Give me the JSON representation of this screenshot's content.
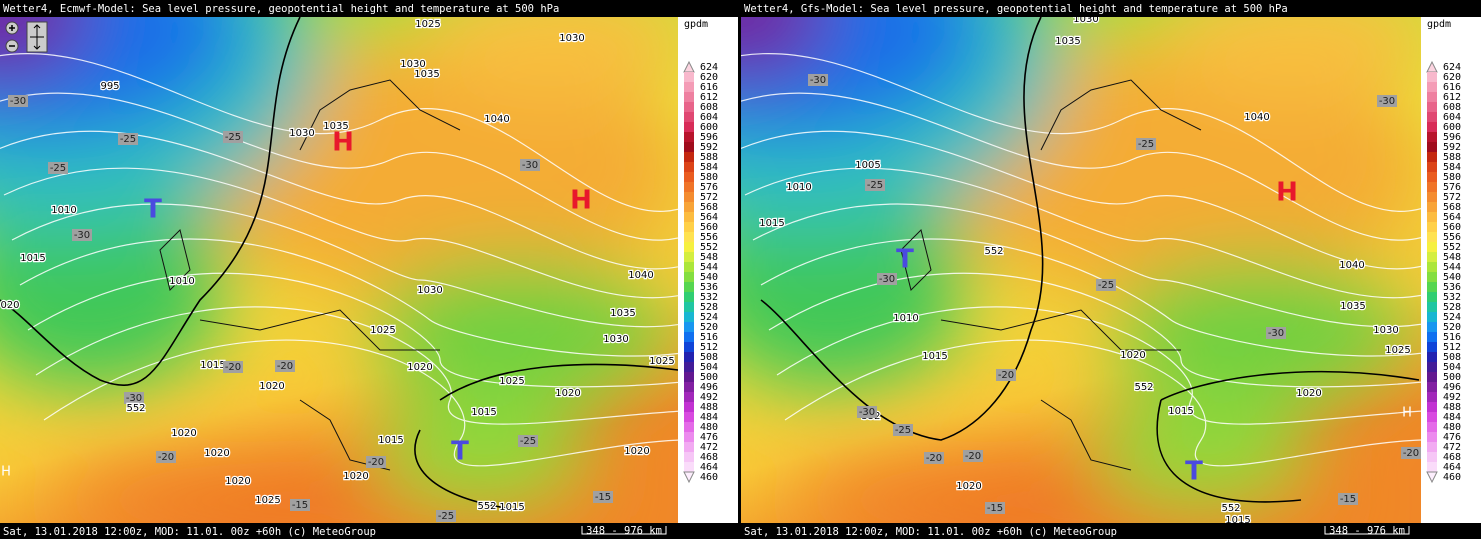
{
  "legend": {
    "unit": "gpdm",
    "levels": [
      624,
      620,
      616,
      612,
      608,
      604,
      600,
      596,
      592,
      588,
      584,
      580,
      576,
      572,
      568,
      564,
      560,
      556,
      552,
      548,
      544,
      540,
      536,
      532,
      528,
      524,
      520,
      516,
      512,
      508,
      504,
      500,
      496,
      492,
      488,
      484,
      480,
      476,
      472,
      468,
      464,
      460
    ],
    "colors": [
      "#fcd4e0",
      "#f8b8cc",
      "#f49cb6",
      "#ee80a0",
      "#e8648a",
      "#e04872",
      "#d82c58",
      "#b8142c",
      "#a00c1c",
      "#c42810",
      "#dc4418",
      "#ea5c20",
      "#f07428",
      "#f48c30",
      "#f8a438",
      "#fcbc40",
      "#ffd048",
      "#ffe250",
      "#f6f040",
      "#d4ee40",
      "#acE63a",
      "#84de40",
      "#56d650",
      "#30ce72",
      "#20c6a2",
      "#18b6d2",
      "#1896f0",
      "#1070f0",
      "#1044d8",
      "#2222b0",
      "#421c98",
      "#621890",
      "#8220a2",
      "#a228ba",
      "#c232d2",
      "#d84ae0",
      "#e46ae8",
      "#ec8aee",
      "#f2aaf2",
      "#f6c6f6",
      "#fadcfa",
      "#fdeefd"
    ]
  },
  "panels": [
    {
      "title": "Wetter4, Ecmwf-Model: Sea level pressure, geopotential height and temperature at 500 hPa",
      "footer": "Sat, 13.01.2018 12:00z, MOD: 11.01. 00z +60h (c) MeteoGroup",
      "scale": "348 - 976 km",
      "labels": [
        "H",
        "H",
        "T",
        "T",
        "H",
        "1025",
        "1030",
        "995",
        "1030",
        "1035",
        "1030",
        "1035",
        "1040",
        "1010",
        "1015",
        "1010",
        "020",
        "1030",
        "1040",
        "1035",
        "1030",
        "1025",
        "1025",
        "1015",
        "1020",
        "1020",
        "1025",
        "1020",
        "1015",
        "1015",
        "1020",
        "1020",
        "1020",
        "1020",
        "1025",
        "552",
        "1015",
        "1020",
        "-30",
        "-25",
        "-25",
        "-25",
        "-30",
        "-30",
        "-20",
        "-20",
        "-30",
        "552",
        "-20",
        "-20",
        "-25",
        "-15",
        "-25",
        "-15"
      ]
    },
    {
      "title": "Wetter4, Gfs-Model: Sea level pressure, geopotential height and temperature at 500 hPa",
      "footer": "Sat, 13.01.2018 12:00z, MOD: 11.01. 00z +60h (c) MeteoGroup",
      "scale": "348 - 976 km",
      "labels": [
        "H",
        "T",
        "T",
        "H",
        "1030",
        "1035",
        "1040",
        "1005",
        "1010",
        "1015",
        "552",
        "1040",
        "1035",
        "1030",
        "1025",
        "1010",
        "1015",
        "1020",
        "552",
        "1020",
        "1015",
        "552",
        "1020",
        "552",
        "1015",
        "-30",
        "-30",
        "-25",
        "-25",
        "-30",
        "-25",
        "-30",
        "-30",
        "-25",
        "-20",
        "-20",
        "-20",
        "-15",
        "-15",
        "-20"
      ]
    }
  ]
}
